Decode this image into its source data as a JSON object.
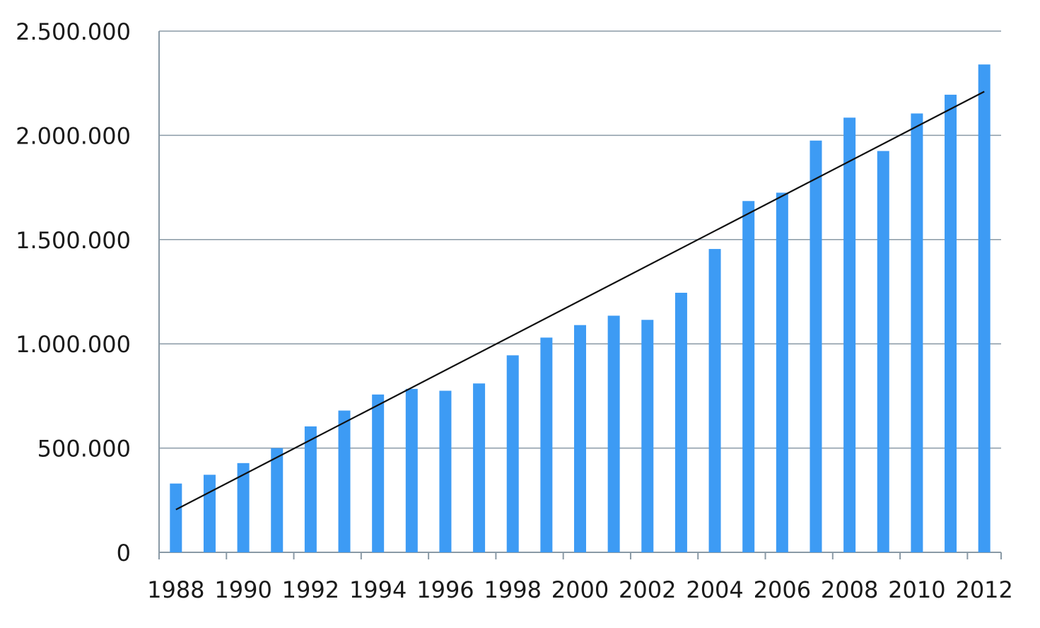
{
  "chart_data": {
    "type": "bar",
    "categories": [
      "1988",
      "1989",
      "1990",
      "1991",
      "1992",
      "1993",
      "1994",
      "1995",
      "1996",
      "1997",
      "1998",
      "1999",
      "2000",
      "2001",
      "2002",
      "2003",
      "2004",
      "2005",
      "2006",
      "2007",
      "2008",
      "2009",
      "2010",
      "2011",
      "2012"
    ],
    "x_tick_labels": [
      "1988",
      "1990",
      "1992",
      "1994",
      "1996",
      "1998",
      "2000",
      "2002",
      "2004",
      "2006",
      "2008",
      "2010",
      "2012"
    ],
    "values": [
      330000,
      372000,
      428000,
      500000,
      604000,
      680000,
      757000,
      784000,
      775000,
      810000,
      945000,
      1030000,
      1090000,
      1135000,
      1115000,
      1245000,
      1455000,
      1685000,
      1725000,
      1975000,
      2085000,
      1925000,
      2105000,
      2195000,
      2340000
    ],
    "ylim": [
      0,
      2500000
    ],
    "y_tick_labels": [
      "0",
      "500.000",
      "1.000.000",
      "1.500.000",
      "2.000.000",
      "2.500.000"
    ],
    "y_tick_values": [
      0,
      500000,
      1000000,
      1500000,
      2000000,
      2500000
    ],
    "trendline": {
      "type": "linear",
      "start": [
        1988,
        205000
      ],
      "end": [
        2012,
        2210000
      ]
    },
    "grid": true,
    "legend": "none",
    "title": "",
    "xlabel": "",
    "ylabel": "",
    "colors": {
      "bar": "#3d9bf4",
      "trend": "#111111",
      "grid": "#8a9aa6"
    }
  }
}
